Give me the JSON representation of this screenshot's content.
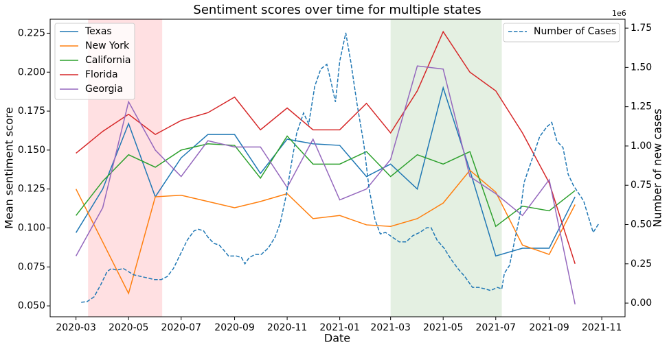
{
  "chart_data": {
    "type": "line",
    "title": "Sentiment scores over time for multiple states",
    "xlabel": "Date",
    "ylabel": "Mean sentiment score",
    "y2label": "Number of new cases",
    "y2_offset_label": "1e6",
    "x": [
      "2020-03",
      "2020-04",
      "2020-05",
      "2020-06",
      "2020-07",
      "2020-08",
      "2020-09",
      "2020-10",
      "2020-11",
      "2020-12",
      "2021-01",
      "2021-02",
      "2021-03",
      "2021-04",
      "2021-05",
      "2021-06",
      "2021-07",
      "2021-08",
      "2021-09",
      "2021-10"
    ],
    "series": [
      {
        "name": "Texas",
        "color": "#1f77b4",
        "values": [
          0.097,
          0.125,
          0.167,
          0.12,
          0.145,
          0.16,
          0.16,
          0.135,
          0.157,
          0.154,
          0.153,
          0.133,
          0.141,
          0.125,
          0.19,
          0.137,
          0.082,
          0.087,
          0.087,
          0.12
        ]
      },
      {
        "name": "New York",
        "color": "#ff7f0e",
        "values": [
          0.125,
          0.091,
          0.058,
          0.12,
          0.121,
          0.117,
          0.113,
          0.117,
          0.122,
          0.106,
          0.108,
          0.102,
          0.101,
          0.106,
          0.116,
          0.137,
          0.123,
          0.089,
          0.083,
          0.115
        ]
      },
      {
        "name": "California",
        "color": "#2ca02c",
        "values": [
          0.108,
          0.13,
          0.147,
          0.139,
          0.15,
          0.154,
          0.153,
          0.132,
          0.159,
          0.141,
          0.141,
          0.149,
          0.133,
          0.147,
          0.141,
          0.149,
          0.101,
          0.114,
          0.111,
          0.124
        ]
      },
      {
        "name": "Florida",
        "color": "#d62728",
        "values": [
          0.148,
          0.162,
          0.173,
          0.16,
          0.169,
          0.174,
          0.184,
          0.163,
          0.177,
          0.163,
          0.163,
          0.18,
          0.161,
          0.188,
          0.226,
          0.2,
          0.188,
          0.161,
          0.129,
          0.077
        ]
      },
      {
        "name": "Georgia",
        "color": "#9467bd",
        "values": [
          0.082,
          0.113,
          0.181,
          0.15,
          0.133,
          0.156,
          0.152,
          0.152,
          0.126,
          0.157,
          0.118,
          0.125,
          0.144,
          0.204,
          0.202,
          0.133,
          0.122,
          0.108,
          0.131,
          0.051
        ]
      },
      {
        "name": "Number of Cases",
        "color": "#1f77b4",
        "axis": "y2",
        "dashed": true,
        "x": [
          "2020-03-07",
          "2020-03-14",
          "2020-03-22",
          "2020-03-30",
          "2020-04-06",
          "2020-04-11",
          "2020-04-17",
          "2020-04-25",
          "2020-05-01",
          "2020-05-07",
          "2020-05-15",
          "2020-05-23",
          "2020-05-31",
          "2020-06-08",
          "2020-06-15",
          "2020-06-22",
          "2020-06-30",
          "2020-07-08",
          "2020-07-16",
          "2020-07-21",
          "2020-07-27",
          "2020-08-01",
          "2020-08-08",
          "2020-08-14",
          "2020-08-19",
          "2020-08-25",
          "2020-09-03",
          "2020-09-09",
          "2020-09-13",
          "2020-09-18",
          "2020-09-25",
          "2020-10-02",
          "2020-10-10",
          "2020-10-18",
          "2020-10-24",
          "2020-10-31",
          "2020-11-06",
          "2020-11-12",
          "2020-11-20",
          "2020-11-26",
          "2020-12-03",
          "2020-12-10",
          "2020-12-17",
          "2020-12-21",
          "2020-12-27",
          "2021-01-01",
          "2021-01-08",
          "2021-01-14",
          "2021-01-21",
          "2021-01-29",
          "2021-02-04",
          "2021-02-11",
          "2021-02-17",
          "2021-02-23",
          "2021-03-03",
          "2021-03-11",
          "2021-03-19",
          "2021-03-27",
          "2021-04-04",
          "2021-04-12",
          "2021-04-17",
          "2021-04-24",
          "2021-05-02",
          "2021-05-10",
          "2021-05-18",
          "2021-05-26",
          "2021-06-04",
          "2021-06-11",
          "2021-06-19",
          "2021-06-25",
          "2021-07-03",
          "2021-07-08",
          "2021-07-11",
          "2021-07-17",
          "2021-07-29",
          "2021-08-03",
          "2021-08-13",
          "2021-08-21",
          "2021-08-29",
          "2021-09-04",
          "2021-09-10",
          "2021-09-17",
          "2021-09-23",
          "2021-09-29",
          "2021-10-11",
          "2021-10-17",
          "2021-10-22",
          "2021-10-29"
        ],
        "values": [
          0.005,
          0.01,
          0.04,
          0.12,
          0.2,
          0.22,
          0.21,
          0.22,
          0.2,
          0.18,
          0.17,
          0.16,
          0.15,
          0.15,
          0.17,
          0.22,
          0.31,
          0.4,
          0.46,
          0.47,
          0.46,
          0.42,
          0.38,
          0.37,
          0.34,
          0.3,
          0.3,
          0.29,
          0.25,
          0.29,
          0.31,
          0.31,
          0.35,
          0.42,
          0.51,
          0.69,
          0.89,
          1.08,
          1.21,
          1.14,
          1.38,
          1.49,
          1.52,
          1.43,
          1.28,
          1.54,
          1.72,
          1.53,
          1.27,
          1.01,
          0.73,
          0.53,
          0.44,
          0.45,
          0.42,
          0.39,
          0.39,
          0.43,
          0.45,
          0.48,
          0.48,
          0.4,
          0.35,
          0.28,
          0.22,
          0.17,
          0.1,
          0.1,
          0.09,
          0.08,
          0.1,
          0.09,
          0.19,
          0.24,
          0.56,
          0.77,
          0.93,
          1.06,
          1.12,
          1.15,
          1.03,
          0.99,
          0.82,
          0.75,
          0.65,
          0.54,
          0.45,
          0.51
        ]
      }
    ],
    "shaded_regions": [
      {
        "start": "2020-03-15",
        "end": "2020-06-09",
        "color": "#ffe0e2"
      },
      {
        "start": "2021-03-01",
        "end": "2021-07-08",
        "color": "#e4f0e2"
      }
    ],
    "xlim": [
      "2020-01-31",
      "2021-11-28"
    ],
    "xticks": [
      "2020-03",
      "2020-05",
      "2020-07",
      "2020-09",
      "2020-11",
      "2021-01",
      "2021-03",
      "2021-05",
      "2021-07",
      "2021-09",
      "2021-11"
    ],
    "ylim": [
      0.043,
      0.234
    ],
    "yticks": [
      {
        "value": 0.05,
        "label": "0.050"
      },
      0.075,
      {
        "value": 0.1,
        "label": "0.100"
      },
      0.125,
      {
        "value": 0.15,
        "label": "0.150"
      },
      0.175,
      {
        "value": 0.2,
        "label": "0.200"
      },
      0.225
    ],
    "y2lim": [
      -0.087,
      1.807
    ],
    "y2ticks": [
      {
        "value": 0,
        "label": "0.00"
      },
      0.25,
      {
        "value": 0.5,
        "label": "0.50"
      },
      0.75,
      {
        "value": 1,
        "label": "1.00"
      },
      1.25,
      {
        "value": 1.5,
        "label": "1.50"
      },
      1.75
    ],
    "legend_loc": "upper left",
    "legend2_loc": "upper right",
    "grid": false
  }
}
